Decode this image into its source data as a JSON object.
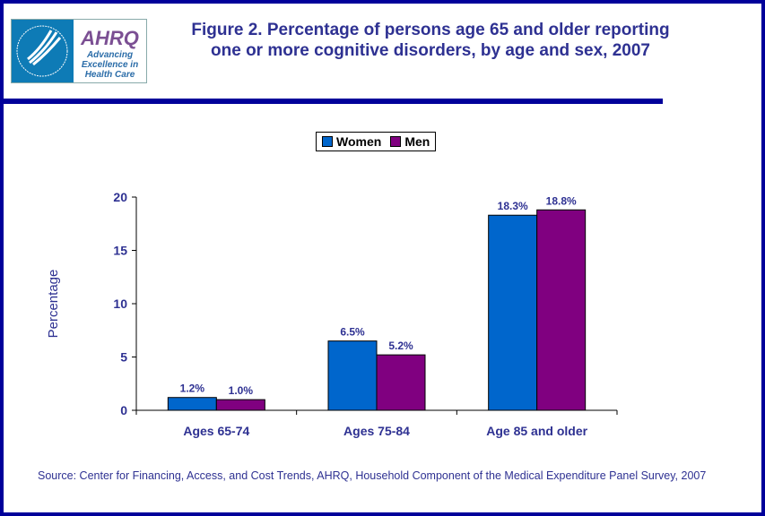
{
  "logo": {
    "text": "AHRQ",
    "tagline": "Advancing Excellence in Health Care",
    "seal_text": "DEPARTMENT OF HEALTH & HUMAN SERVICES USA"
  },
  "title_line1": "Figure 2. Percentage of persons age 65 and older reporting",
  "title_line2": "one or more cognitive disorders, by age and sex, 2007",
  "source": "Source: Center  for Financing, Access, and Cost Trends, AHRQ, Household Component of the Medical Expenditure Panel Survey, 2007",
  "chart_data": {
    "type": "bar",
    "title": "Figure 2. Percentage of persons age 65 and older reporting one or more cognitive disorders, by age and sex, 2007",
    "xlabel": "",
    "ylabel": "Percentage",
    "ylim": [
      0,
      20
    ],
    "yticks": [
      0,
      5,
      10,
      15,
      20
    ],
    "grid": false,
    "legend_placement": "top",
    "categories": [
      "Ages 65-74",
      "Ages 75-84",
      "Age 85 and older"
    ],
    "series": [
      {
        "name": "Women",
        "color": "#0066cc",
        "values": [
          1.2,
          6.5,
          18.3
        ],
        "labels": [
          "1.2%",
          "6.5%",
          "18.3%"
        ]
      },
      {
        "name": "Men",
        "color": "#800080",
        "values": [
          1.0,
          5.2,
          18.8
        ],
        "labels": [
          "1.0%",
          "5.2%",
          "18.8%"
        ]
      }
    ]
  }
}
